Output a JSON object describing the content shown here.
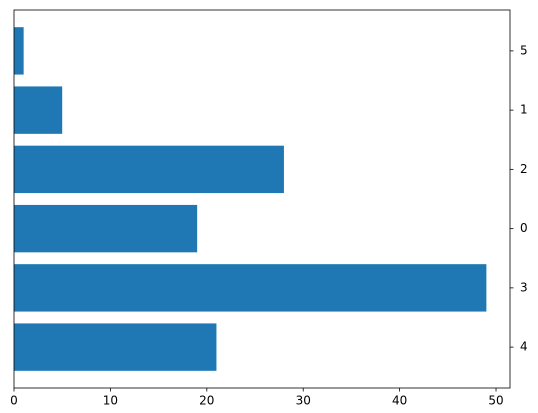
{
  "chart_data": {
    "type": "barh",
    "categories": [
      "4",
      "3",
      "0",
      "2",
      "1",
      "5"
    ],
    "values": [
      21,
      49,
      19,
      28,
      5,
      1
    ],
    "color": "#1f77b4",
    "xlim": [
      0,
      51.45
    ],
    "xticks": [
      0,
      10,
      20,
      30,
      40,
      50
    ],
    "category_axis_side": "right"
  }
}
